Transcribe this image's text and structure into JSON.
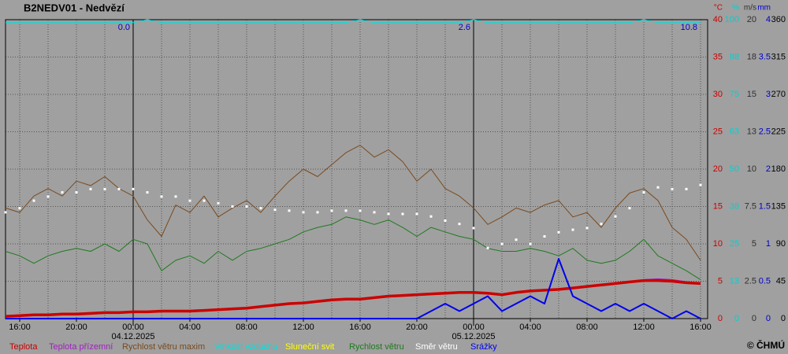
{
  "chart_data": {
    "type": "line",
    "title": "B2NEDV01 - Nedvězí",
    "footer": "© ČHMÚ",
    "xlim": [
      -9,
      40.5
    ],
    "xticks": [
      {
        "value": -8,
        "label": "16:00"
      },
      {
        "value": -4,
        "label": "20:00"
      },
      {
        "value": 0,
        "label": "00:00"
      },
      {
        "value": 4,
        "label": "04:00"
      },
      {
        "value": 8,
        "label": "08:00"
      },
      {
        "value": 12,
        "label": "12:00"
      },
      {
        "value": 16,
        "label": "16:00"
      },
      {
        "value": 20,
        "label": "20:00"
      },
      {
        "value": 24,
        "label": "00:00"
      },
      {
        "value": 28,
        "label": "04:00"
      },
      {
        "value": 32,
        "label": "08:00"
      },
      {
        "value": 36,
        "label": "12:00"
      },
      {
        "value": 40,
        "label": "16:00"
      }
    ],
    "xgrid": [
      -8,
      -6,
      -4,
      -2,
      0,
      2,
      4,
      6,
      8,
      10,
      12,
      14,
      16,
      18,
      20,
      22,
      24,
      26,
      28,
      30,
      32,
      34,
      36,
      38,
      40
    ],
    "day_lines": [
      0,
      24
    ],
    "date_labels": [
      {
        "x": 0,
        "label": "04.12.2025"
      },
      {
        "x": 24,
        "label": "05.12.2025"
      }
    ],
    "annotations": [
      {
        "x": 0,
        "text": "0.0"
      },
      {
        "x": 24,
        "text": "2.6"
      },
      {
        "x": 40,
        "text": "10.8"
      }
    ],
    "y_axes": [
      {
        "unit": "°C",
        "color": "#cc0000",
        "lim": [
          0,
          40
        ],
        "ticks": [
          0,
          5,
          10,
          15,
          20,
          25,
          30,
          35,
          40
        ]
      },
      {
        "unit": "%",
        "color": "#00d0d0",
        "lim": [
          0,
          100
        ],
        "ticks": [
          0,
          {
            "value": 12.5,
            "label": "13"
          },
          25,
          {
            "value": 37.5,
            "label": "38"
          },
          50,
          {
            "value": 62.5,
            "label": "63"
          },
          75,
          {
            "value": 87.5,
            "label": "88"
          },
          100
        ]
      },
      {
        "unit": "m/s",
        "color": "#303030",
        "lim": [
          0,
          20
        ],
        "ticks": [
          0,
          2.5,
          5,
          7.5,
          10,
          {
            "value": 12.5,
            "label": "13"
          },
          15,
          {
            "value": 17.5,
            "label": "18"
          },
          20
        ]
      },
      {
        "unit": "mm",
        "color": "#0000cc",
        "lim": [
          0,
          4
        ],
        "ticks": [
          0,
          0.5,
          1,
          1.5,
          2,
          2.5,
          3,
          3.5,
          4
        ]
      },
      {
        "color": "#000000",
        "lim": [
          0,
          360
        ],
        "ticks": [
          0,
          45,
          90,
          135,
          180,
          225,
          270,
          315,
          360
        ]
      }
    ],
    "x": [
      -9,
      -8,
      -7,
      -6,
      -5,
      -4,
      -3,
      -2,
      -1,
      0,
      1,
      2,
      3,
      4,
      5,
      6,
      7,
      8,
      9,
      10,
      11,
      12,
      13,
      14,
      15,
      16,
      17,
      18,
      19,
      20,
      21,
      22,
      23,
      24,
      25,
      26,
      27,
      28,
      29,
      30,
      31,
      32,
      33,
      34,
      35,
      36,
      37,
      38,
      39,
      40
    ],
    "series": [
      {
        "name": "Teplota",
        "color": "#cc0000",
        "axis": 0,
        "width": 3.5,
        "style": "line",
        "values": [
          0.3,
          0.4,
          0.5,
          0.5,
          0.6,
          0.6,
          0.7,
          0.8,
          0.8,
          0.9,
          0.9,
          1.0,
          1.0,
          1.0,
          1.1,
          1.2,
          1.3,
          1.4,
          1.6,
          1.8,
          2.0,
          2.1,
          2.3,
          2.5,
          2.6,
          2.6,
          2.8,
          3.0,
          3.1,
          3.2,
          3.3,
          3.4,
          3.5,
          3.5,
          3.4,
          3.2,
          3.5,
          3.7,
          3.8,
          3.9,
          4.1,
          4.3,
          4.5,
          4.7,
          4.9,
          5.1,
          5.1,
          5.0,
          4.8,
          4.7
        ]
      },
      {
        "name": "Teplota přízemní",
        "color": "#a020c0",
        "axis": 0,
        "width": 1.5,
        "style": "line",
        "values": [
          0.3,
          0.4,
          0.5,
          0.5,
          0.6,
          0.6,
          0.7,
          0.8,
          0.8,
          0.9,
          0.9,
          1.0,
          1.0,
          1.0,
          1.1,
          1.2,
          1.3,
          1.4,
          1.6,
          1.8,
          2.0,
          2.1,
          2.3,
          2.5,
          2.6,
          2.6,
          2.8,
          3.0,
          3.1,
          3.2,
          3.3,
          3.4,
          3.5,
          3.5,
          3.4,
          3.2,
          3.5,
          3.7,
          3.8,
          3.9,
          4.1,
          4.3,
          4.5,
          4.7,
          4.9,
          5.2,
          5.3,
          5.2,
          4.9,
          4.6
        ]
      },
      {
        "name": "Rychlost větru maxim",
        "color": "#7a4a1e",
        "axis": 2,
        "width": 1,
        "style": "line",
        "values": [
          7.4,
          7.1,
          8.2,
          8.7,
          8.2,
          9.2,
          8.9,
          9.5,
          8.7,
          8.2,
          6.6,
          5.5,
          7.6,
          7.1,
          8.2,
          6.8,
          7.4,
          7.9,
          7.1,
          8.2,
          9.2,
          10.0,
          9.5,
          10.3,
          11.1,
          11.6,
          10.8,
          11.3,
          10.5,
          9.2,
          10.0,
          8.7,
          8.2,
          7.4,
          6.3,
          6.8,
          7.4,
          7.1,
          7.6,
          7.9,
          6.8,
          7.1,
          6.1,
          7.4,
          8.4,
          8.7,
          7.9,
          6.1,
          5.3,
          3.9
        ]
      },
      {
        "name": "Vlhkost vzduchu",
        "color": "#00e0e0",
        "axis": 1,
        "width": 1,
        "style": "line",
        "values": [
          99,
          99,
          99,
          99,
          99,
          99,
          99,
          99,
          99,
          99,
          100,
          99,
          99,
          99,
          99,
          99,
          99,
          99,
          99,
          99,
          99,
          99,
          99,
          99,
          99,
          100,
          99,
          99,
          99,
          99,
          99,
          99,
          99,
          100,
          99,
          99,
          99,
          99,
          99,
          99,
          99,
          99,
          99,
          99,
          99,
          100,
          99,
          99,
          99,
          99
        ]
      },
      {
        "name": "Sluneční svit",
        "color": "#ffff00",
        "axis": 1,
        "width": 1,
        "style": "line",
        "values": [
          null,
          null,
          null,
          null,
          null,
          null,
          null,
          null,
          null,
          null,
          null,
          null,
          null,
          null,
          null,
          null,
          null,
          null,
          null,
          null,
          null,
          null,
          null,
          null,
          null,
          null,
          null,
          null,
          null,
          null,
          null,
          null,
          null,
          null,
          null,
          null,
          null,
          null,
          null,
          null,
          null,
          null,
          null,
          null,
          null,
          null,
          null,
          null,
          null,
          null
        ]
      },
      {
        "name": "Rychlost větru",
        "color": "#1e7a1e",
        "axis": 2,
        "width": 1,
        "style": "line",
        "values": [
          4.5,
          4.2,
          3.7,
          4.2,
          4.5,
          4.7,
          4.5,
          5.0,
          4.5,
          5.3,
          5.0,
          3.2,
          3.9,
          4.2,
          3.7,
          4.5,
          3.9,
          4.5,
          4.7,
          5.0,
          5.3,
          5.8,
          6.1,
          6.3,
          6.8,
          6.6,
          6.3,
          6.6,
          6.1,
          5.5,
          6.1,
          5.8,
          5.5,
          5.3,
          4.7,
          4.5,
          4.5,
          4.7,
          4.5,
          4.2,
          4.7,
          3.9,
          3.7,
          3.9,
          4.5,
          5.3,
          4.2,
          3.7,
          3.2,
          2.6
        ]
      },
      {
        "name": "Směr větru",
        "color": "#ffffff",
        "axis": 4,
        "width": 1,
        "style": "dots",
        "values": [
          128,
          133,
          142,
          147,
          152,
          152,
          156,
          156,
          156,
          156,
          152,
          147,
          147,
          142,
          142,
          139,
          135,
          135,
          133,
          131,
          130,
          128,
          128,
          130,
          130,
          130,
          128,
          126,
          126,
          126,
          123,
          118,
          114,
          109,
          85,
          90,
          95,
          90,
          99,
          104,
          107,
          109,
          114,
          123,
          133,
          152,
          158,
          156,
          156,
          161
        ]
      },
      {
        "name": "Srážky",
        "color": "#0000ee",
        "axis": 3,
        "width": 2,
        "style": "line",
        "values": [
          0,
          0,
          0,
          0,
          0,
          0,
          0,
          0,
          0,
          0,
          0,
          0,
          0,
          0,
          0,
          0,
          0,
          0,
          0,
          0,
          0,
          0,
          0,
          0,
          0,
          0,
          0,
          0,
          0,
          0,
          0.1,
          0.2,
          0.1,
          0.2,
          0.3,
          0.1,
          0.2,
          0.3,
          0.2,
          0.8,
          0.3,
          0.2,
          0.1,
          0.2,
          0.1,
          0.2,
          0.1,
          0,
          0.1,
          0
        ]
      }
    ],
    "draw_order": [
      3,
      2,
      5,
      6,
      1,
      0,
      4,
      7
    ]
  }
}
